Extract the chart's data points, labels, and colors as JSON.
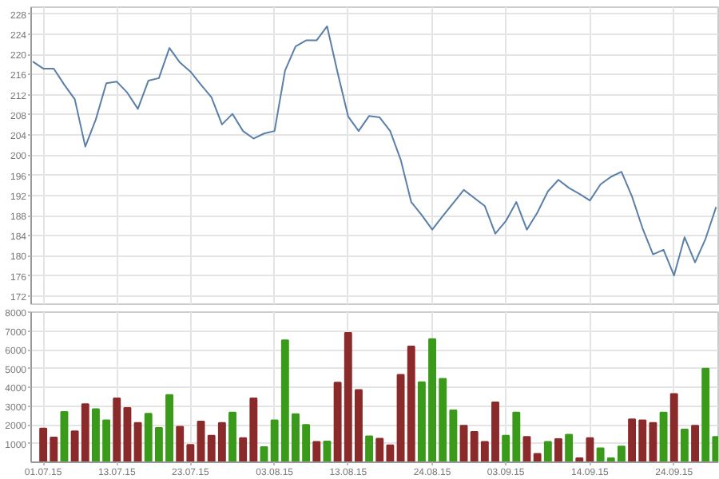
{
  "chart_data": [
    {
      "type": "line",
      "tick_labels": "y",
      "grid": true,
      "marker": "none",
      "line_style": "solid",
      "categories": [
        null,
        "01.07.15",
        null,
        null,
        null,
        null,
        null,
        null,
        "13.07.15",
        null,
        null,
        null,
        null,
        null,
        null,
        "23.07.15",
        null,
        null,
        null,
        null,
        null,
        null,
        null,
        "03.08.15",
        null,
        null,
        null,
        null,
        null,
        null,
        "13.08.15",
        null,
        null,
        null,
        null,
        null,
        null,
        null,
        "24.08.15",
        null,
        null,
        null,
        null,
        null,
        null,
        "03.09.15",
        null,
        null,
        null,
        null,
        null,
        null,
        null,
        "14.09.15",
        null,
        null,
        null,
        null,
        null,
        null,
        null,
        "24.09.15",
        null,
        null,
        null,
        null
      ],
      "ylim": [
        170.4,
        229.4
      ],
      "yticks": [
        172,
        176,
        180,
        184,
        188,
        192,
        196,
        200,
        204,
        208,
        212,
        216,
        220,
        224,
        228
      ],
      "series": [
        {
          "color": "#5a7fa8",
          "values": [
            218.6,
            217.2,
            217.2,
            214.0,
            211.1,
            201.7,
            207.1,
            214.3,
            214.6,
            212.4,
            209.2,
            214.8,
            215.3,
            221.3,
            218.4,
            216.6,
            214.0,
            211.5,
            206.1,
            208.2,
            204.8,
            203.3,
            204.3,
            204.8,
            216.8,
            221.6,
            222.8,
            222.8,
            225.6,
            216.4,
            207.7,
            204.8,
            207.8,
            207.5,
            204.8,
            199.1,
            190.7,
            188.1,
            185.2,
            187.9,
            190.5,
            193.1,
            191.5,
            189.9,
            184.4,
            186.9,
            190.7,
            185.2,
            188.6,
            192.8,
            195.1,
            193.5,
            192.3,
            191.0,
            194.2,
            195.7,
            196.7,
            191.8,
            185.5,
            180.3,
            181.2,
            176.1,
            183.7,
            178.7,
            183.4,
            189.7
          ]
        }
      ]
    },
    {
      "type": "bar",
      "grid": true,
      "categories": [
        null,
        "01.07.15",
        null,
        null,
        null,
        null,
        null,
        null,
        "13.07.15",
        null,
        null,
        null,
        null,
        null,
        null,
        "23.07.15",
        null,
        null,
        null,
        null,
        null,
        null,
        null,
        "03.08.15",
        null,
        null,
        null,
        null,
        null,
        null,
        "13.08.15",
        null,
        null,
        null,
        null,
        null,
        null,
        null,
        "24.08.15",
        null,
        null,
        null,
        null,
        null,
        null,
        "03.09.15",
        null,
        null,
        null,
        null,
        null,
        null,
        null,
        "14.09.15",
        null,
        null,
        null,
        null,
        null,
        null,
        null,
        "24.09.15",
        null,
        null,
        null,
        null
      ],
      "ylim": [
        0,
        8000
      ],
      "yticks": [
        1000,
        2000,
        3000,
        4000,
        5000,
        6000,
        7000,
        8000
      ],
      "values": [
        null,
        1800,
        1320,
        2680,
        1650,
        3100,
        2830,
        2230,
        3400,
        2890,
        2100,
        2590,
        1830,
        3580,
        1890,
        930,
        2170,
        1410,
        2100,
        2650,
        1290,
        3400,
        810,
        2230,
        6500,
        2560,
        1990,
        1080,
        1110,
        4240,
        6890,
        3850,
        1380,
        1260,
        900,
        4660,
        6170,
        4270,
        6560,
        4450,
        2770,
        1950,
        1620,
        1080,
        3190,
        1410,
        2650,
        1350,
        450,
        1080,
        1230,
        1470,
        210,
        1290,
        750,
        210,
        840,
        2290,
        2230,
        2100,
        2650,
        3640,
        1740,
        1950,
        4990,
        1350
      ],
      "colors": [
        null,
        "#8b2a2a",
        "#8b2a2a",
        "#3a9a1a",
        "#8b2a2a",
        "#8b2a2a",
        "#3a9a1a",
        "#3a9a1a",
        "#8b2a2a",
        "#8b2a2a",
        "#8b2a2a",
        "#3a9a1a",
        "#3a9a1a",
        "#3a9a1a",
        "#8b2a2a",
        "#8b2a2a",
        "#8b2a2a",
        "#8b2a2a",
        "#8b2a2a",
        "#3a9a1a",
        "#8b2a2a",
        "#8b2a2a",
        "#3a9a1a",
        "#3a9a1a",
        "#3a9a1a",
        "#3a9a1a",
        "#3a9a1a",
        "#8b2a2a",
        "#3a9a1a",
        "#8b2a2a",
        "#8b2a2a",
        "#8b2a2a",
        "#3a9a1a",
        "#8b2a2a",
        "#8b2a2a",
        "#8b2a2a",
        "#8b2a2a",
        "#3a9a1a",
        "#3a9a1a",
        "#3a9a1a",
        "#3a9a1a",
        "#8b2a2a",
        "#8b2a2a",
        "#8b2a2a",
        "#8b2a2a",
        "#3a9a1a",
        "#3a9a1a",
        "#8b2a2a",
        "#8b2a2a",
        "#3a9a1a",
        "#8b2a2a",
        "#3a9a1a",
        "#8b2a2a",
        "#8b2a2a",
        "#3a9a1a",
        "#3a9a1a",
        "#3a9a1a",
        "#8b2a2a",
        "#8b2a2a",
        "#8b2a2a",
        "#3a9a1a",
        "#8b2a2a",
        "#3a9a1a",
        "#8b2a2a",
        "#3a9a1a",
        "#3a9a1a"
      ]
    }
  ]
}
